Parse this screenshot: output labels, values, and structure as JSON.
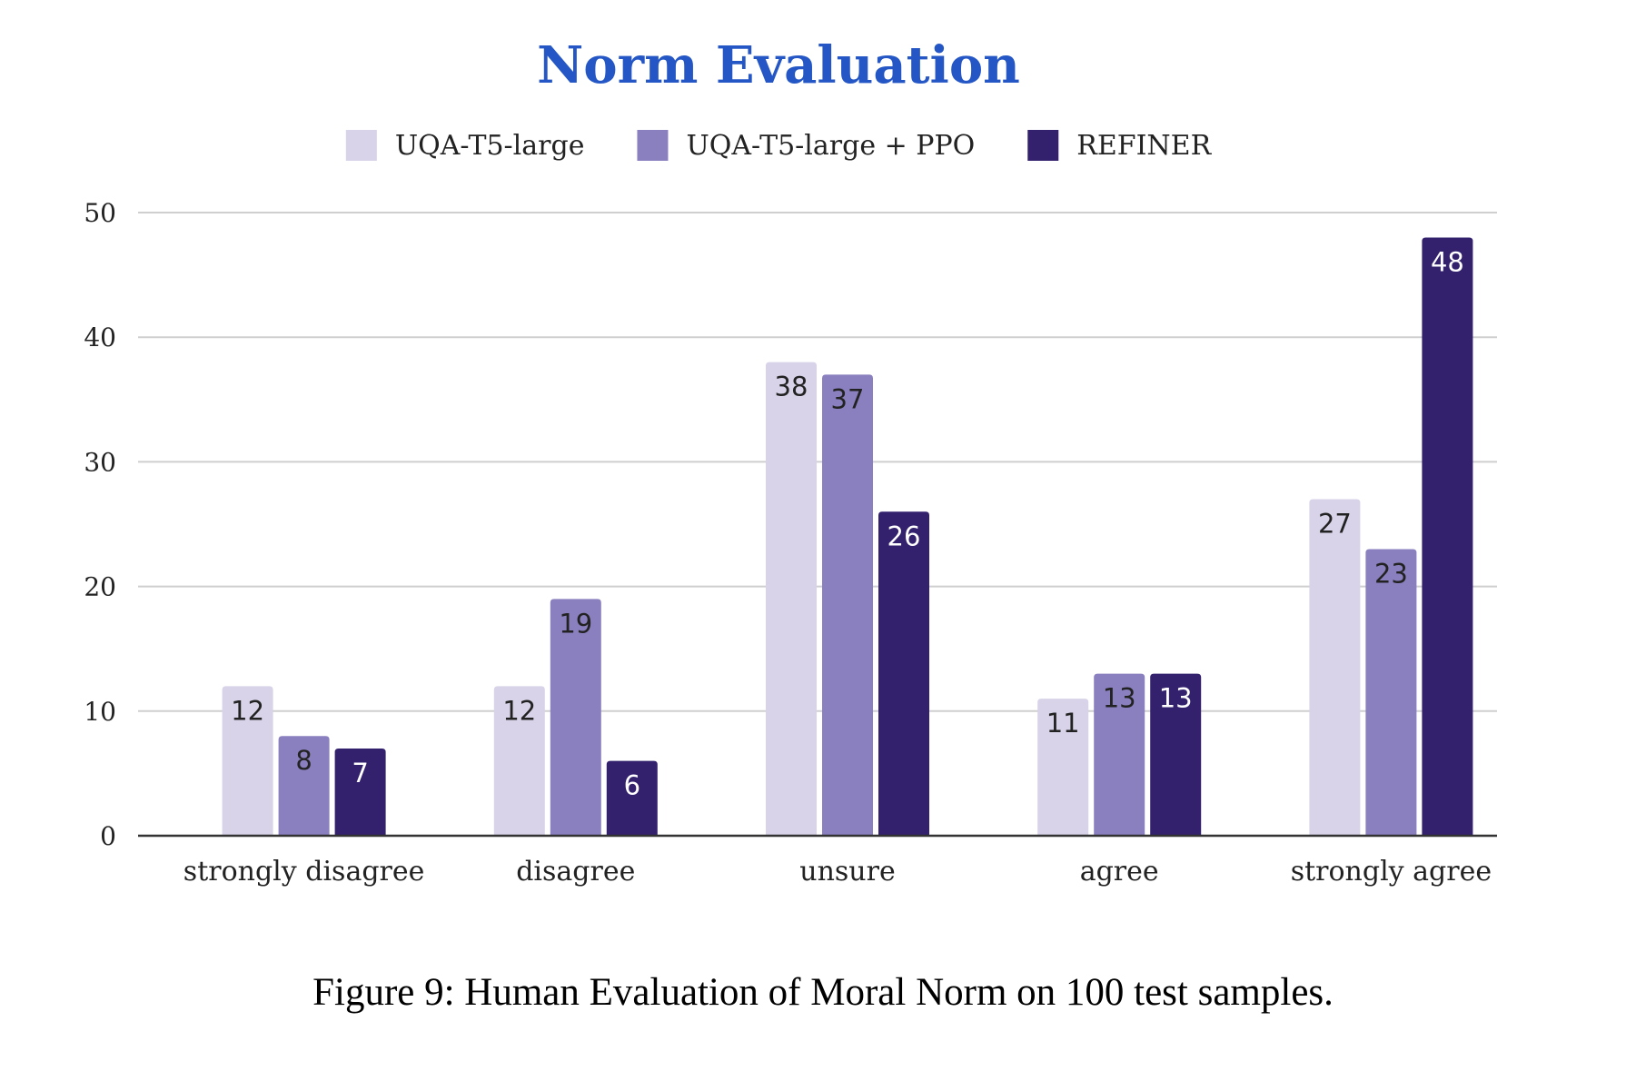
{
  "chart_data": {
    "type": "bar",
    "title": "Norm Evaluation",
    "categories": [
      "strongly disagree",
      "disagree",
      "unsure",
      "agree",
      "strongly agree"
    ],
    "series": [
      {
        "name": "UQA-T5-large",
        "color": "#d8d3e8",
        "label_color": "#222222",
        "values": [
          12,
          12,
          38,
          11,
          27
        ]
      },
      {
        "name": "UQA-T5-large + PPO",
        "color": "#8b80bf",
        "label_color": "#222222",
        "values": [
          8,
          19,
          37,
          13,
          23
        ]
      },
      {
        "name": "REFINER",
        "color": "#33216e",
        "label_color": "#ffffff",
        "values": [
          7,
          6,
          26,
          13,
          48
        ]
      }
    ],
    "yticks": [
      0,
      10,
      20,
      30,
      40,
      50
    ],
    "ylim": [
      0,
      50
    ],
    "grid": true,
    "legend_position": "top-center",
    "xlabel": "",
    "ylabel": ""
  },
  "caption": "Figure 9: Human Evaluation of Moral Norm on 100 test samples."
}
